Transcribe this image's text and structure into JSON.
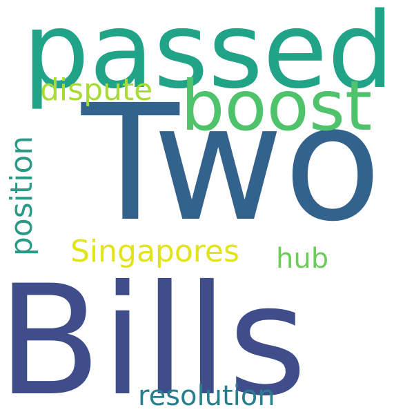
{
  "words": [
    {
      "text": "Two",
      "color": "#33638d"
    },
    {
      "text": "Bills",
      "color": "#3f4e8a"
    },
    {
      "text": "passed",
      "color": "#20a386"
    },
    {
      "text": "boost",
      "color": "#4ec36b"
    },
    {
      "text": "dispute",
      "color": "#a8db34"
    },
    {
      "text": "position",
      "color": "#2a9a84"
    },
    {
      "text": "Singapores",
      "color": "#e2e418"
    },
    {
      "text": "hub",
      "color": "#6ccd5a"
    },
    {
      "text": "resolution",
      "color": "#277f8e"
    }
  ]
}
